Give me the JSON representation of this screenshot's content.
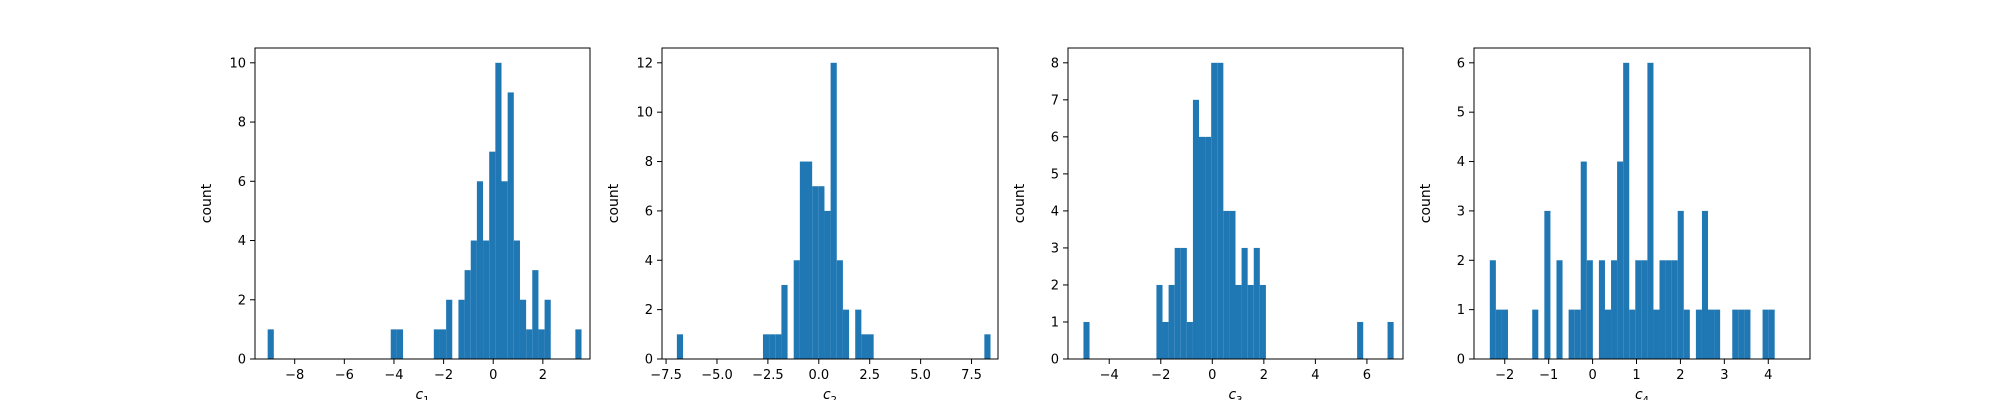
{
  "figure": {
    "ylabel": "count"
  },
  "chart_data": [
    {
      "type": "bar",
      "title": "",
      "xlabel": "c",
      "xlabel_sub": "1",
      "ylabel": "count",
      "xlim": [
        -9.6,
        3.9
      ],
      "ylim": [
        0,
        10.5
      ],
      "xticks": [
        -8,
        -6,
        -4,
        -2,
        0,
        2
      ],
      "xtick_labels": [
        "−8",
        "−6",
        "−4",
        "−2",
        "0",
        "2"
      ],
      "yticks": [
        0,
        2,
        4,
        6,
        8,
        10
      ],
      "bin_start": -9.09,
      "bin_width": 0.248,
      "counts": [
        1,
        0,
        0,
        0,
        0,
        0,
        0,
        0,
        0,
        0,
        0,
        0,
        0,
        0,
        0,
        0,
        0,
        0,
        0,
        0,
        1,
        1,
        0,
        0,
        0,
        0,
        0,
        1,
        1,
        2,
        0,
        2,
        3,
        4,
        6,
        4,
        7,
        10,
        6,
        9,
        4,
        2,
        1,
        3,
        1,
        2,
        0,
        0,
        0,
        0,
        1
      ]
    },
    {
      "type": "bar",
      "title": "",
      "xlabel": "c",
      "xlabel_sub": "2",
      "ylabel": "count",
      "xlim": [
        -7.7,
        8.8
      ],
      "ylim": [
        0,
        12.6
      ],
      "xticks": [
        -7.5,
        -5.0,
        -2.5,
        0.0,
        2.5,
        5.0,
        7.5
      ],
      "xtick_labels": [
        "−7.5",
        "−5.0",
        "−2.5",
        "0.0",
        "2.5",
        "5.0",
        "7.5"
      ],
      "yticks": [
        0,
        2,
        4,
        6,
        8,
        10,
        12
      ],
      "bin_start": -6.97,
      "bin_width": 0.302,
      "counts": [
        1,
        0,
        0,
        0,
        0,
        0,
        0,
        0,
        0,
        0,
        0,
        0,
        0,
        0,
        1,
        1,
        1,
        3,
        0,
        4,
        8,
        8,
        7,
        7,
        6,
        12,
        4,
        2,
        0,
        2,
        1,
        1,
        0,
        0,
        0,
        0,
        0,
        0,
        0,
        0,
        0,
        0,
        0,
        0,
        0,
        0,
        0,
        0,
        0,
        0,
        1
      ]
    },
    {
      "type": "bar",
      "title": "",
      "xlabel": "c",
      "xlabel_sub": "3",
      "ylabel": "count",
      "xlim": [
        -5.6,
        7.4
      ],
      "ylim": [
        0,
        8.4
      ],
      "xticks": [
        -4,
        -2,
        0,
        2,
        4,
        6
      ],
      "xtick_labels": [
        "−4",
        "−2",
        "0",
        "2",
        "4",
        "6"
      ],
      "yticks": [
        0,
        1,
        2,
        3,
        4,
        5,
        6,
        7,
        8
      ],
      "bin_start": -5.0,
      "bin_width": 0.236,
      "counts": [
        1,
        0,
        0,
        0,
        0,
        0,
        0,
        0,
        0,
        0,
        0,
        0,
        2,
        1,
        2,
        3,
        3,
        1,
        7,
        6,
        6,
        8,
        8,
        4,
        4,
        2,
        3,
        2,
        3,
        2,
        0,
        0,
        0,
        0,
        0,
        0,
        0,
        0,
        0,
        0,
        0,
        0,
        0,
        0,
        0,
        1,
        0,
        0,
        0,
        0,
        1
      ]
    },
    {
      "type": "bar",
      "title": "",
      "xlabel": "c",
      "xlabel_sub": "4",
      "ylabel": "count",
      "xlim": [
        -2.7,
        4.95
      ],
      "ylim": [
        0,
        6.3
      ],
      "xticks": [
        -2,
        -1,
        0,
        1,
        2,
        3,
        4
      ],
      "xtick_labels": [
        "−2",
        "−1",
        "0",
        "1",
        "2",
        "3",
        "4"
      ],
      "yticks": [
        0,
        1,
        2,
        3,
        4,
        5,
        6
      ],
      "bin_start": -2.34,
      "bin_width": 0.138,
      "counts": [
        2,
        1,
        1,
        0,
        0,
        0,
        0,
        1,
        0,
        3,
        0,
        2,
        0,
        1,
        1,
        4,
        2,
        0,
        2,
        1,
        2,
        4,
        6,
        1,
        2,
        2,
        6,
        1,
        2,
        2,
        2,
        3,
        1,
        0,
        1,
        3,
        1,
        1,
        0,
        0,
        1,
        1,
        1,
        0,
        0,
        1,
        1,
        0,
        0,
        0,
        0
      ]
    }
  ]
}
